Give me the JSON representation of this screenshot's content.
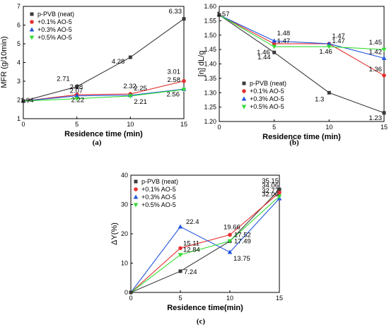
{
  "legend_labels": [
    "p-PVB (neat)",
    "+0.1% AO-5",
    "+0.3% AO-5",
    "+0.5% AO-5"
  ],
  "series_colors": [
    "#3a3a3a",
    "#e53030",
    "#2255dd",
    "#33dd33"
  ],
  "chart_data": [
    {
      "type": "line",
      "caption": "(a)",
      "xlabel": "Residence time (min)",
      "ylabel": "MFR (g/10min)",
      "x": [
        0,
        5,
        10,
        15
      ],
      "xlim": [
        0,
        15
      ],
      "ylim": [
        1,
        7
      ],
      "xticks": [
        0,
        5,
        10,
        15
      ],
      "yticks": [
        1,
        2,
        3,
        4,
        5,
        6,
        7
      ],
      "grid": false,
      "legend_position": "top-left",
      "series": [
        {
          "name": "p-PVB (neat)",
          "marker": "square",
          "values": [
            1.94,
            2.71,
            4.28,
            6.33
          ]
        },
        {
          "name": "+0.1% AO-5",
          "marker": "circle",
          "values": [
            1.94,
            2.28,
            2.32,
            3.01
          ]
        },
        {
          "name": "+0.3% AO-5",
          "marker": "triangle-up",
          "values": [
            1.94,
            2.22,
            2.25,
            2.58
          ]
        },
        {
          "name": "+0.5% AO-5",
          "marker": "triangle-down",
          "values": [
            1.94,
            2.07,
            2.21,
            2.56
          ]
        }
      ],
      "data_labels": [
        {
          "text": "1.94",
          "x": 0,
          "y": 1.94
        },
        {
          "text": "2.71",
          "x": 5,
          "y": 2.71
        },
        {
          "text": "2.28",
          "x": 5,
          "y": 2.28
        },
        {
          "text": "2.22",
          "x": 5,
          "y": 2.22
        },
        {
          "text": "2.07",
          "x": 5,
          "y": 2.07
        },
        {
          "text": "4.28",
          "x": 10,
          "y": 4.28
        },
        {
          "text": "2.32",
          "x": 10,
          "y": 2.32
        },
        {
          "text": "2.25",
          "x": 10,
          "y": 2.25
        },
        {
          "text": "2.21",
          "x": 10,
          "y": 2.21
        },
        {
          "text": "6.33",
          "x": 15,
          "y": 6.33
        },
        {
          "text": "3.01",
          "x": 15,
          "y": 3.01
        },
        {
          "text": "2.58",
          "x": 15,
          "y": 2.58
        },
        {
          "text": "2.56",
          "x": 15,
          "y": 2.56
        }
      ]
    },
    {
      "type": "line",
      "caption": "(b)",
      "xlabel": "Residence time (min)",
      "ylabel": "[η] dL/g",
      "x": [
        0,
        5,
        10,
        15
      ],
      "xlim": [
        0,
        15
      ],
      "ylim": [
        1.2,
        1.6
      ],
      "xticks": [
        0,
        5,
        10,
        15
      ],
      "yticks": [
        1.2,
        1.25,
        1.3,
        1.35,
        1.4,
        1.45,
        1.5,
        1.55,
        1.6
      ],
      "grid": false,
      "legend_position": "bottom-left",
      "series": [
        {
          "name": "p-PVB (neat)",
          "marker": "square",
          "values": [
            1.57,
            1.44,
            1.3,
            1.23
          ]
        },
        {
          "name": "+0.1% AO-5",
          "marker": "circle",
          "values": [
            1.57,
            1.47,
            1.47,
            1.36
          ]
        },
        {
          "name": "+0.3% AO-5",
          "marker": "triangle-up",
          "values": [
            1.57,
            1.48,
            1.47,
            1.42
          ]
        },
        {
          "name": "+0.5% AO-5",
          "marker": "triangle-down",
          "values": [
            1.57,
            1.46,
            1.46,
            1.45
          ]
        }
      ],
      "data_labels": [
        {
          "text": "1.57",
          "x": 0,
          "y": 1.57
        },
        {
          "text": "1.48",
          "x": 5,
          "y": 1.48
        },
        {
          "text": "1.47",
          "x": 5,
          "y": 1.47
        },
        {
          "text": "1.46",
          "x": 5,
          "y": 1.46
        },
        {
          "text": "1.44",
          "x": 5,
          "y": 1.44
        },
        {
          "text": "1.47",
          "x": 10,
          "y": 1.47
        },
        {
          "text": "1.47",
          "x": 10,
          "y": 1.47
        },
        {
          "text": "1.46",
          "x": 10,
          "y": 1.46
        },
        {
          "text": "1.3",
          "x": 10,
          "y": 1.3
        },
        {
          "text": "1.45",
          "x": 15,
          "y": 1.45
        },
        {
          "text": "1.42",
          "x": 15,
          "y": 1.42
        },
        {
          "text": "1.36",
          "x": 15,
          "y": 1.36
        },
        {
          "text": "1.23",
          "x": 15,
          "y": 1.23
        }
      ]
    },
    {
      "type": "line",
      "caption": "(c)",
      "xlabel": "Residence time(min)",
      "ylabel": "ΔY(%)",
      "x": [
        0,
        5,
        10,
        15
      ],
      "xlim": [
        0,
        15
      ],
      "ylim": [
        0,
        40
      ],
      "xticks": [
        0,
        5,
        10,
        15
      ],
      "yticks": [
        0,
        10,
        20,
        30,
        40
      ],
      "grid": false,
      "legend_position": "top-left",
      "series": [
        {
          "name": "p-PVB (neat)",
          "marker": "square",
          "values": [
            0,
            7.24,
            17.49,
            35.15
          ]
        },
        {
          "name": "+0.1% AO-5",
          "marker": "circle",
          "values": [
            0,
            15.11,
            19.66,
            34.06
          ]
        },
        {
          "name": "+0.3% AO-5",
          "marker": "triangle-up",
          "values": [
            0,
            22.4,
            13.75,
            32.06
          ]
        },
        {
          "name": "+0.5% AO-5",
          "marker": "triangle-down",
          "values": [
            0,
            12.84,
            17.52,
            32.77
          ]
        }
      ],
      "data_labels": [
        {
          "text": "22.4",
          "x": 5,
          "y": 22.4
        },
        {
          "text": "15.11",
          "x": 5,
          "y": 15.11
        },
        {
          "text": "12.84",
          "x": 5,
          "y": 12.84
        },
        {
          "text": "7.24",
          "x": 5,
          "y": 7.24
        },
        {
          "text": "19.66",
          "x": 10,
          "y": 19.66
        },
        {
          "text": "17.52",
          "x": 10,
          "y": 17.52
        },
        {
          "text": "17.49",
          "x": 10,
          "y": 17.49
        },
        {
          "text": "13.75",
          "x": 10,
          "y": 13.75
        },
        {
          "text": "35.15",
          "x": 15,
          "y": 35.15
        },
        {
          "text": "34.06",
          "x": 15,
          "y": 34.06
        },
        {
          "text": "32.77",
          "x": 15,
          "y": 32.77
        },
        {
          "text": "32.06",
          "x": 15,
          "y": 32.06
        }
      ]
    }
  ]
}
